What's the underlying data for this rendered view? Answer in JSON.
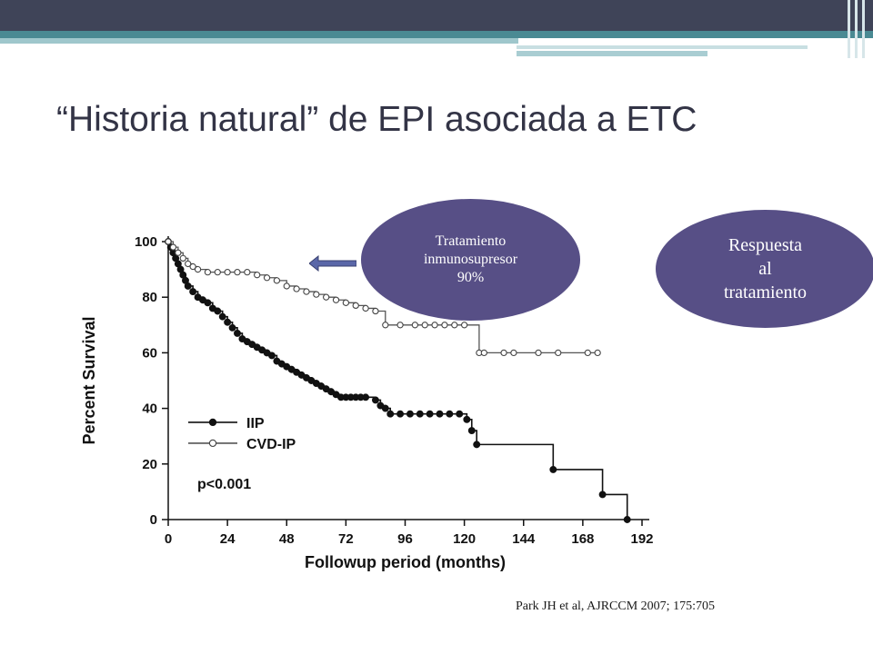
{
  "slide": {
    "title": "“Historia natural” de EPI asociada a ETC",
    "bubble_treatment": "Tratamiento\ninmunosupresor\n90%",
    "bubble_response": "Respuesta\nal\ntratamiento",
    "citation": "Park JH et al, AJRCCM 2007; 175:705"
  },
  "colors": {
    "header_dark": "#3f4458",
    "header_teal": "#4a8a93",
    "bubble_fill": "#574f86",
    "arrow_fill": "#5a67a8"
  },
  "chart_data": {
    "type": "line",
    "xlabel": "Followup period (months)",
    "ylabel": "Percent Survival",
    "xticks": [
      0,
      24,
      48,
      72,
      96,
      120,
      144,
      168,
      192
    ],
    "yticks": [
      0,
      20,
      40,
      60,
      80,
      100
    ],
    "xlim": [
      0,
      192
    ],
    "ylim": [
      0,
      100
    ],
    "grid": false,
    "legend_position": "lower-left",
    "annotation": "p<0.001",
    "series": [
      {
        "name": "IIP",
        "marker": "filled-circle",
        "x": [
          0,
          1,
          2,
          3,
          4,
          5,
          6,
          7,
          8,
          10,
          12,
          14,
          16,
          18,
          20,
          22,
          24,
          26,
          28,
          30,
          32,
          34,
          36,
          38,
          40,
          42,
          44,
          46,
          48,
          50,
          52,
          54,
          56,
          58,
          60,
          62,
          64,
          66,
          68,
          70,
          72,
          74,
          76,
          78,
          80,
          84,
          86,
          88,
          90,
          94,
          98,
          102,
          106,
          110,
          114,
          118,
          121,
          123,
          125,
          156,
          176,
          186
        ],
        "y": [
          100,
          98,
          96,
          94,
          92,
          90,
          88,
          86,
          84,
          82,
          80,
          79,
          78,
          76,
          75,
          73,
          71,
          69,
          67,
          65,
          64,
          63,
          62,
          61,
          60,
          59,
          57,
          56,
          55,
          54,
          53,
          52,
          51,
          50,
          49,
          48,
          47,
          46,
          45,
          44,
          44,
          44,
          44,
          44,
          44,
          43,
          41,
          40,
          38,
          38,
          38,
          38,
          38,
          38,
          38,
          38,
          36,
          32,
          27,
          18,
          9,
          0
        ]
      },
      {
        "name": "CVD-IP",
        "marker": "open-circle",
        "x": [
          0,
          2,
          4,
          6,
          8,
          10,
          12,
          16,
          20,
          24,
          28,
          32,
          36,
          40,
          44,
          48,
          52,
          56,
          60,
          64,
          68,
          72,
          76,
          80,
          84,
          88,
          94,
          100,
          104,
          108,
          112,
          116,
          120,
          126,
          128,
          136,
          140,
          150,
          158,
          170,
          174
        ],
        "y": [
          100,
          98,
          96,
          94,
          92,
          91,
          90,
          89,
          89,
          89,
          89,
          89,
          88,
          87,
          86,
          84,
          83,
          82,
          81,
          80,
          79,
          78,
          77,
          76,
          75,
          70,
          70,
          70,
          70,
          70,
          70,
          70,
          70,
          60,
          60,
          60,
          60,
          60,
          60,
          60,
          60
        ]
      }
    ]
  }
}
